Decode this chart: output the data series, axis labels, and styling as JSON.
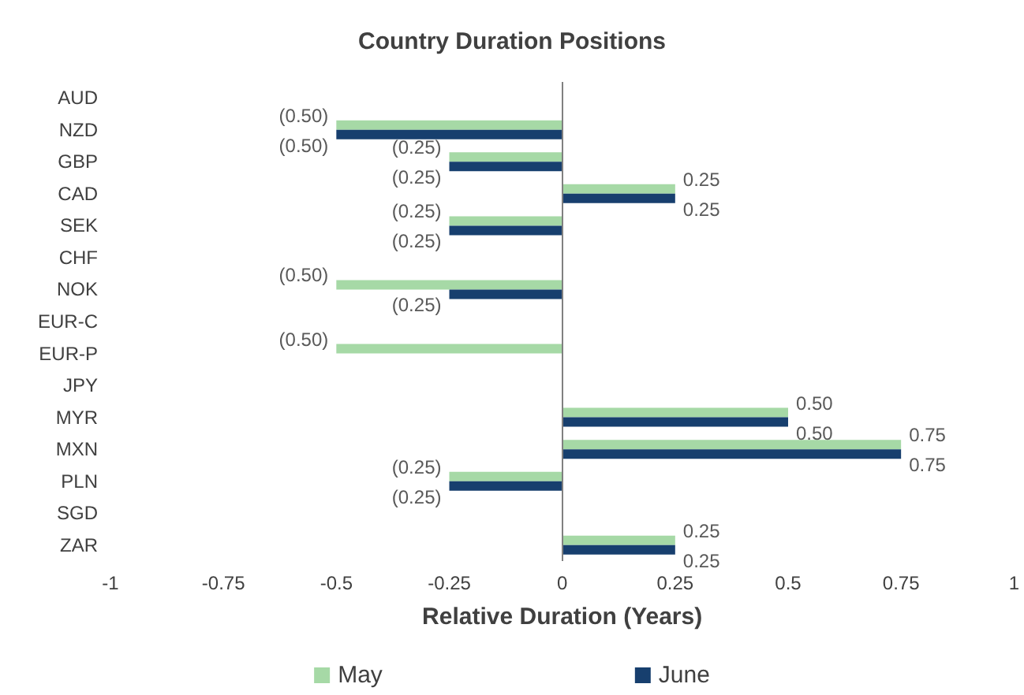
{
  "chart_data": {
    "type": "bar",
    "orientation": "horizontal",
    "title": "Country Duration Positions",
    "xlabel": "Relative Duration (Years)",
    "categories": [
      "AUD",
      "NZD",
      "GBP",
      "CAD",
      "SEK",
      "CHF",
      "NOK",
      "EUR-C",
      "EUR-P",
      "JPY",
      "MYR",
      "MXN",
      "PLN",
      "SGD",
      "ZAR"
    ],
    "series": [
      {
        "name": "May",
        "color": "#a6d9a6",
        "values": [
          null,
          -0.5,
          -0.25,
          0.25,
          -0.25,
          null,
          -0.5,
          null,
          -0.5,
          null,
          0.5,
          0.75,
          -0.25,
          null,
          0.25
        ],
        "value_labels": [
          null,
          "(0.50)",
          "(0.25)",
          "0.25",
          "(0.25)",
          null,
          "(0.50)",
          null,
          "(0.50)",
          null,
          "0.50",
          "0.75",
          "(0.25)",
          null,
          "0.25"
        ]
      },
      {
        "name": "June",
        "color": "#173f6e",
        "values": [
          null,
          -0.5,
          -0.25,
          0.25,
          -0.25,
          null,
          -0.25,
          null,
          null,
          null,
          0.5,
          0.75,
          -0.25,
          null,
          0.25
        ],
        "value_labels": [
          null,
          "(0.50)",
          "(0.25)",
          "0.25",
          "(0.25)",
          null,
          "(0.25)",
          null,
          null,
          null,
          "0.50",
          "0.75",
          "(0.25)",
          null,
          "0.25"
        ]
      }
    ],
    "xlim": [
      -1,
      1
    ],
    "xticks": [
      -1,
      -0.75,
      -0.5,
      -0.25,
      0,
      0.25,
      0.5,
      0.75,
      1
    ],
    "ref_lines": [
      {
        "axis": "x",
        "value": 0,
        "color": "#808080"
      }
    ],
    "legend": "bottom"
  }
}
